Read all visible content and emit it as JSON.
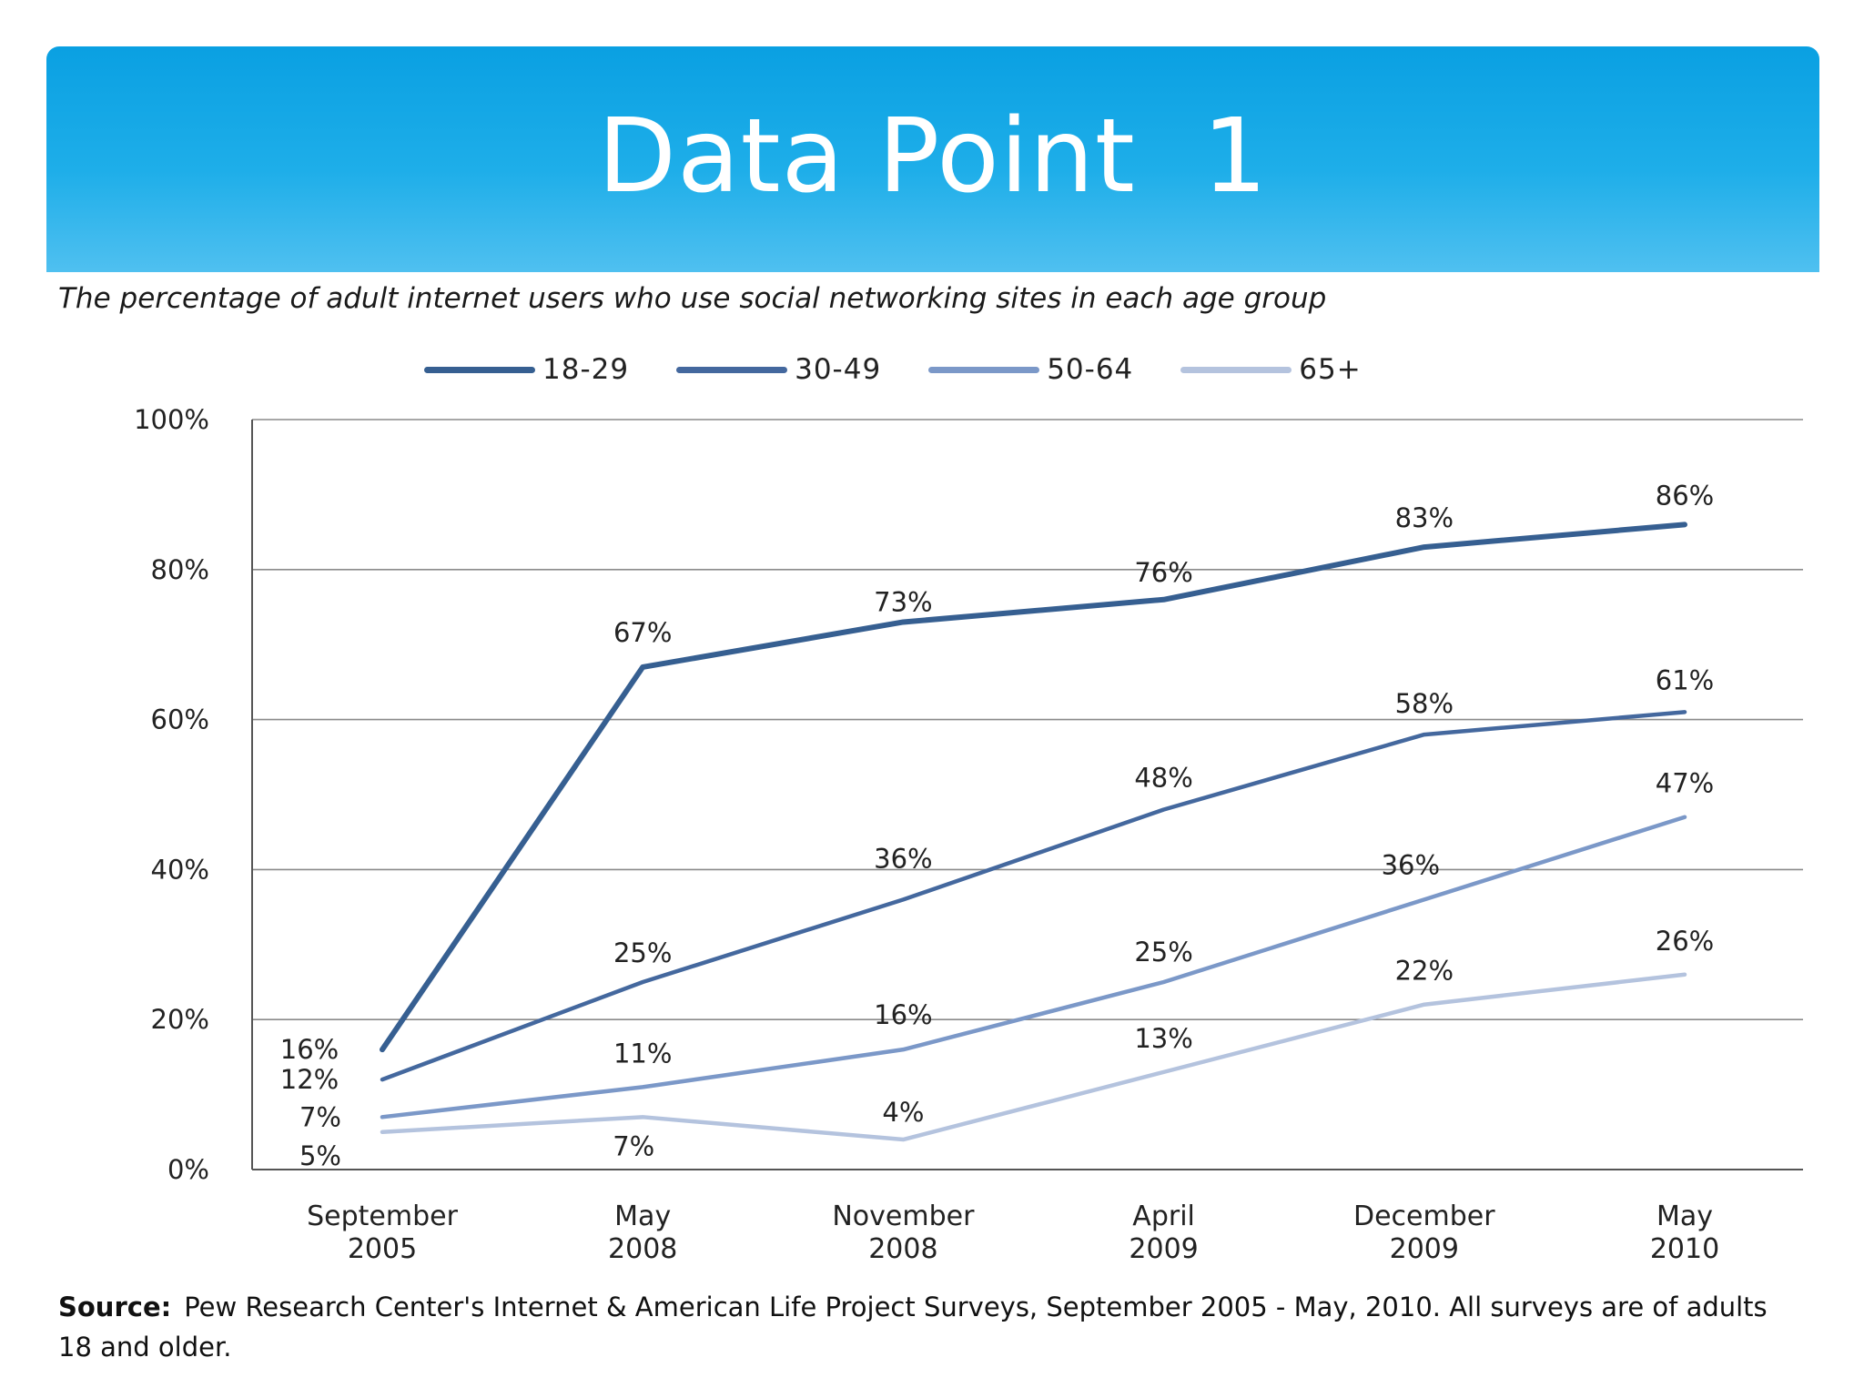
{
  "slide": {
    "title": "Data Point  1",
    "subtitle": "The percentage of adult internet users who use social networking sites in each age group",
    "source_label": "Source:",
    "source_text": "Pew Research Center's Internet & American Life Project Surveys, September 2005 - May, 2010. All surveys are of adults 18 and older."
  },
  "colors": {
    "banner": "#1eaee9",
    "series_18_29": "#365f91",
    "series_30_49": "#44689e",
    "series_50_64": "#7b98c8",
    "series_65_plus": "#b4c3de",
    "grid": "#8a8a8a"
  },
  "chart_data": {
    "type": "line",
    "title": "The percentage of adult internet users who use social networking sites in each age group",
    "categories": [
      [
        "September",
        "2005"
      ],
      [
        "May",
        "2008"
      ],
      [
        "November",
        "2008"
      ],
      [
        "April",
        "2009"
      ],
      [
        "December",
        "2009"
      ],
      [
        "May",
        "2010"
      ]
    ],
    "y_ticks": [
      "0%",
      "20%",
      "40%",
      "60%",
      "80%",
      "100%"
    ],
    "ylim": [
      0,
      100
    ],
    "grid": true,
    "legend": "top",
    "series": [
      {
        "name": "18-29",
        "color": "#365f91",
        "values": [
          16,
          67,
          73,
          76,
          83,
          86
        ],
        "labels": [
          "16%",
          "67%",
          "73%",
          "76%",
          "83%",
          "86%"
        ]
      },
      {
        "name": "30-49",
        "color": "#44689e",
        "values": [
          12,
          25,
          36,
          48,
          58,
          61
        ],
        "labels": [
          "12%",
          "25%",
          "36%",
          "48%",
          "58%",
          "61%"
        ]
      },
      {
        "name": "50-64",
        "color": "#7b98c8",
        "values": [
          7,
          11,
          16,
          25,
          36,
          47
        ],
        "labels": [
          "7%",
          "11%",
          "16%",
          "25%",
          "36%",
          "47%"
        ]
      },
      {
        "name": "65+",
        "color": "#b4c3de",
        "values": [
          5,
          7,
          4,
          13,
          22,
          26
        ],
        "labels": [
          "5%",
          "7%",
          "4%",
          "13%",
          "22%",
          "26%"
        ]
      }
    ]
  }
}
